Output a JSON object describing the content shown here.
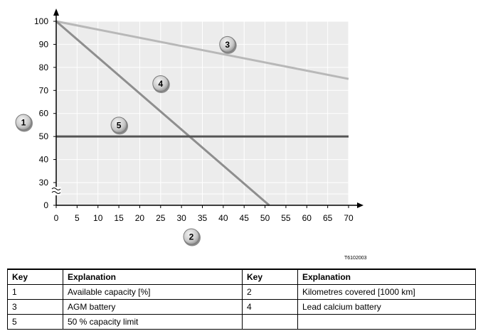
{
  "chart_data": {
    "type": "line",
    "title": "",
    "xlabel": "",
    "ylabel": "",
    "xlim": [
      0,
      70
    ],
    "ylim": [
      0,
      100
    ],
    "x_ticks": [
      0,
      5,
      10,
      15,
      20,
      25,
      30,
      35,
      40,
      45,
      50,
      55,
      60,
      65,
      70
    ],
    "y_ticks": [
      0,
      30,
      40,
      50,
      60,
      70,
      80,
      90,
      100
    ],
    "axis_break": "y between 0 and 30",
    "grid": true,
    "series": [
      {
        "callout": "3",
        "color": "#b8b8b8",
        "x": [
          0,
          70
        ],
        "y": [
          100,
          75
        ]
      },
      {
        "callout": "4",
        "color": "#8e8e8e",
        "x": [
          0,
          51
        ],
        "y": [
          100,
          0
        ]
      },
      {
        "callout": "5",
        "color": "#555555",
        "x": [
          0,
          70
        ],
        "y": [
          50,
          50
        ]
      }
    ],
    "callouts": [
      {
        "label": "1",
        "target": "y-axis"
      },
      {
        "label": "2",
        "target": "x-axis"
      },
      {
        "label": "3",
        "x": 41,
        "y": 90
      },
      {
        "label": "4",
        "x": 25,
        "y": 73
      },
      {
        "label": "5",
        "x": 15,
        "y": 55
      }
    ]
  },
  "figure_id": "T6102003",
  "key_table": {
    "headers": [
      "Key",
      "Explanation",
      "Key",
      "Explanation"
    ],
    "rows": [
      [
        "1",
        "Available capacity [%]",
        "2",
        "Kilometres covered [1000 km]"
      ],
      [
        "3",
        "AGM battery",
        "4",
        "Lead calcium battery"
      ],
      [
        "5",
        "50 % capacity limit",
        "",
        ""
      ]
    ]
  }
}
